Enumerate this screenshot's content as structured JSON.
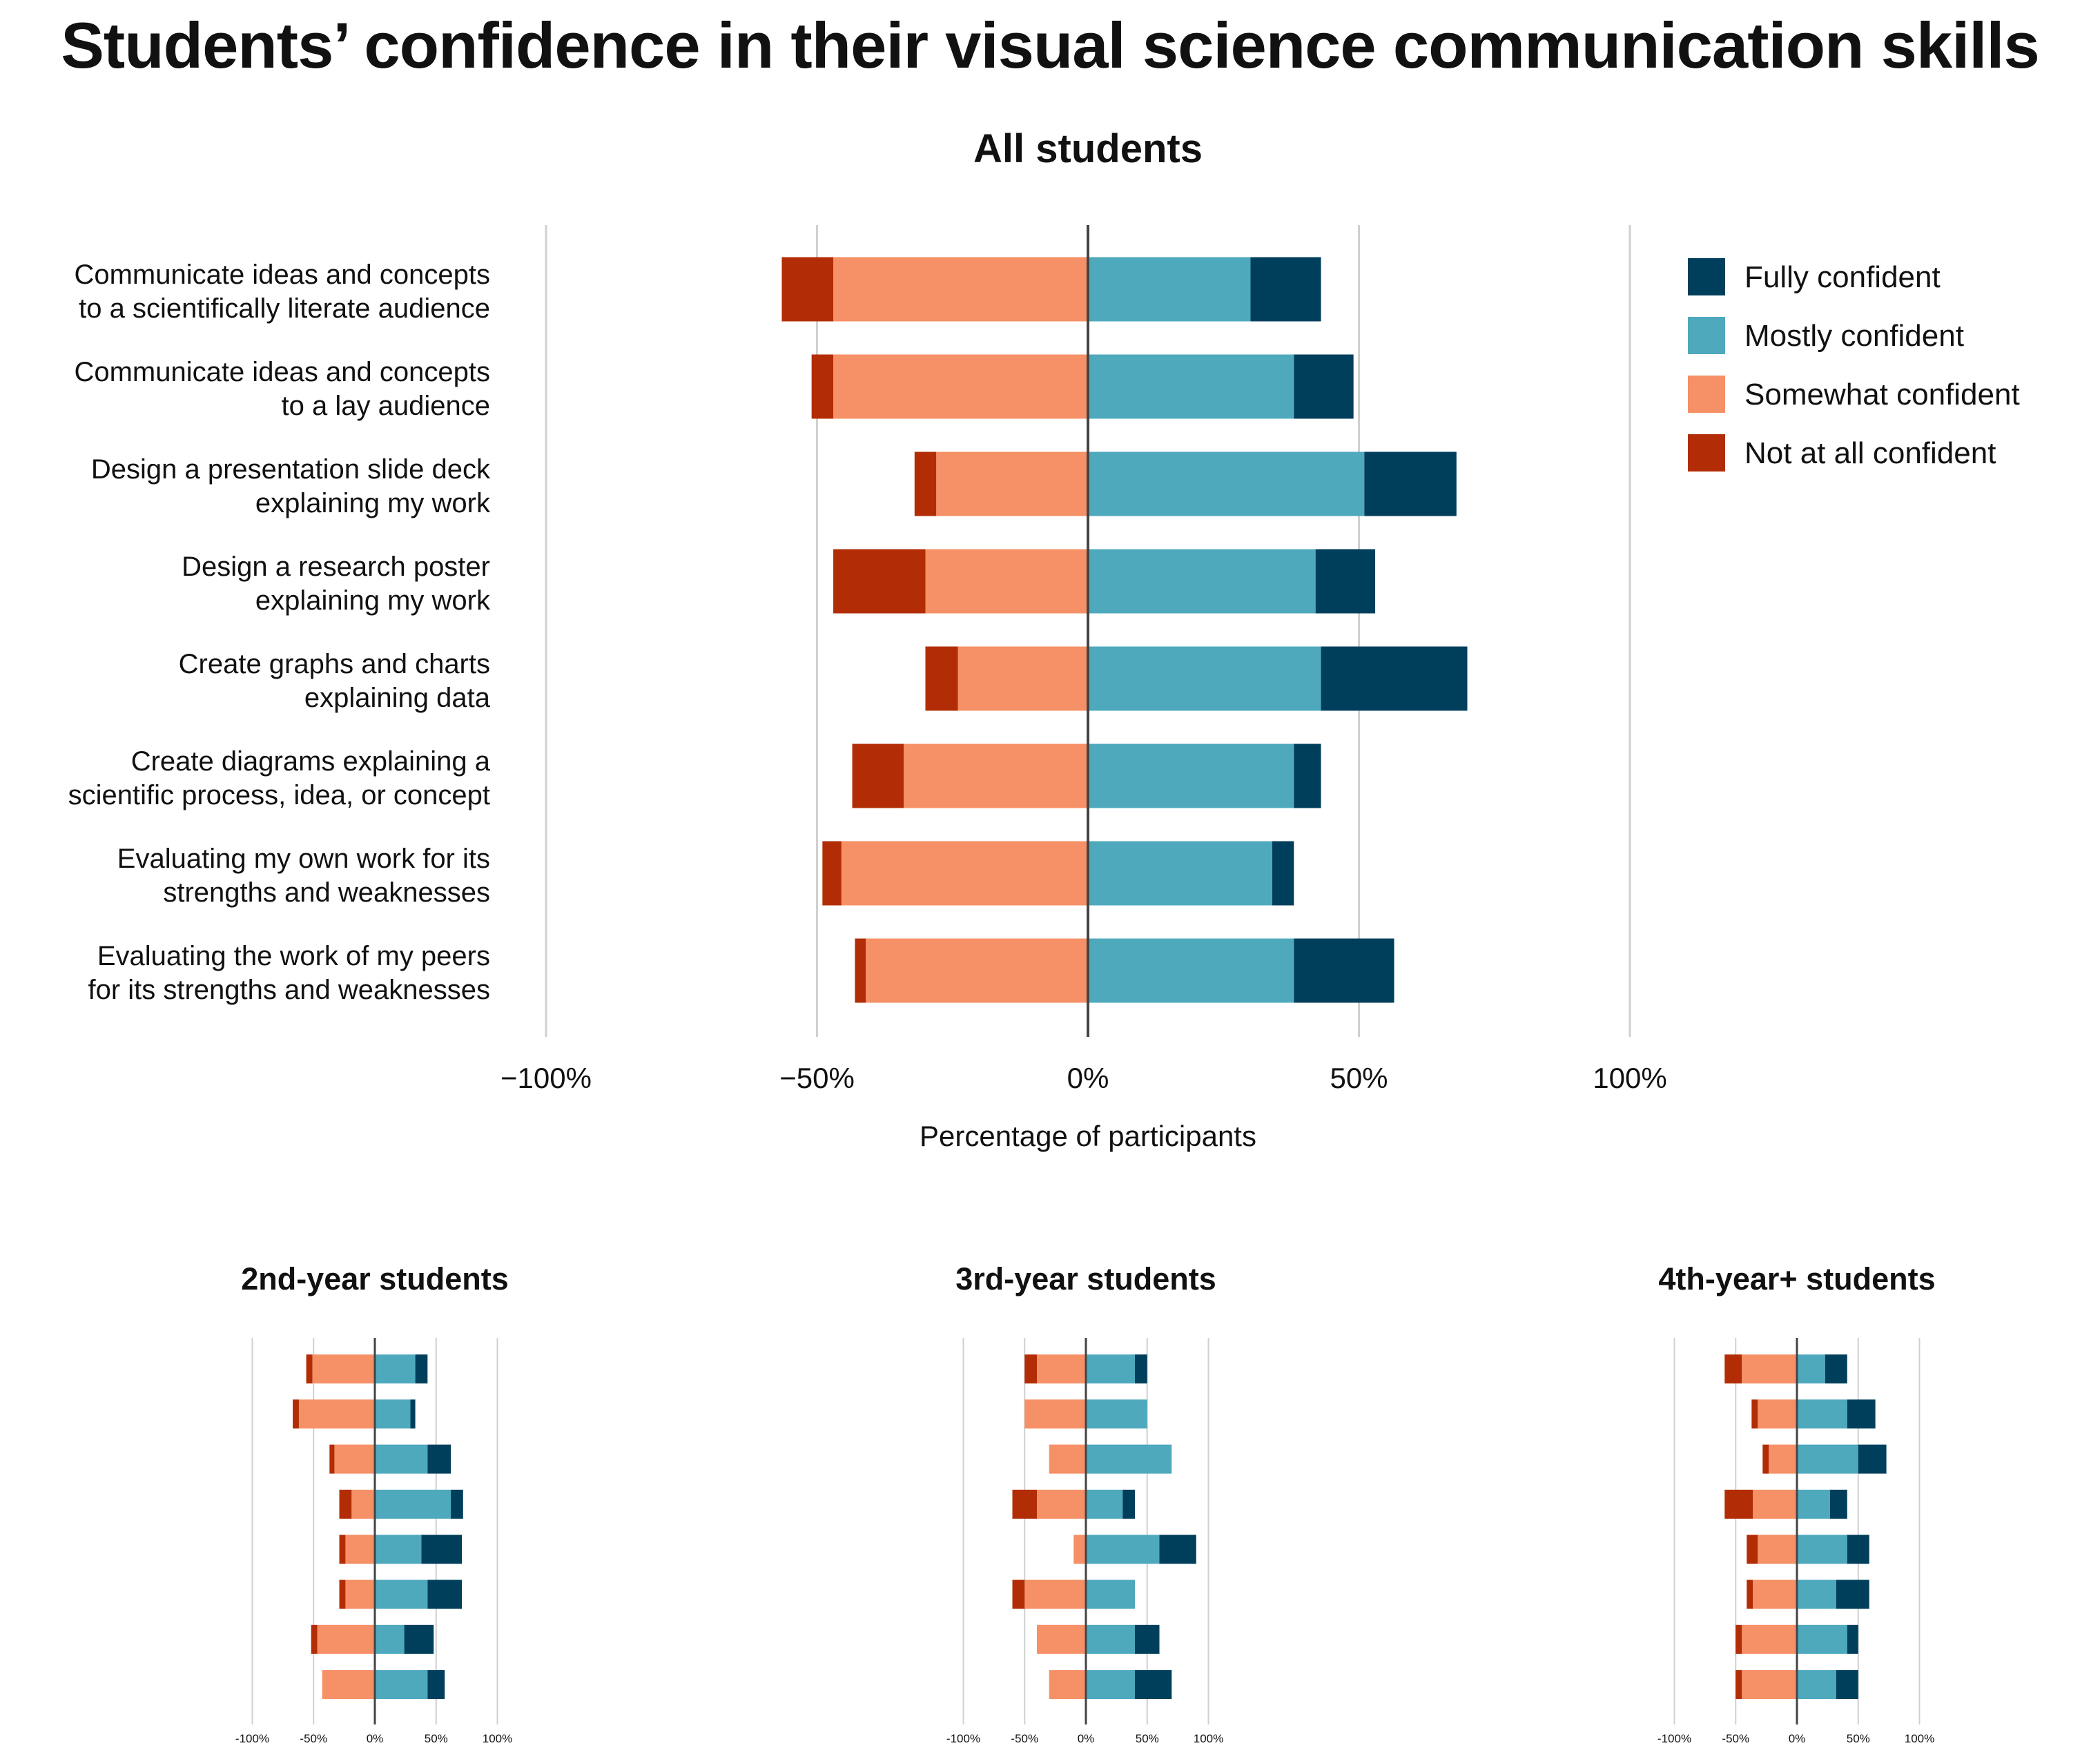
{
  "title": "Students’ confidence in their visual science communication skills",
  "legend": [
    {
      "label": "Fully confident",
      "color": "#003f5c"
    },
    {
      "label": "Mostly confident",
      "color": "#4ea9bd"
    },
    {
      "label": "Somewhat confident",
      "color": "#f69066"
    },
    {
      "label": "Not at all confident",
      "color": "#b22d05"
    }
  ],
  "chart_data": [
    {
      "type": "bar",
      "orientation": "horizontal-diverging-stacked",
      "title": "All students",
      "xlabel": "Percentage of participants",
      "xlim": [
        -100,
        100
      ],
      "ticks": [
        "−100%",
        "−50%",
        "0%",
        "50%",
        "100%"
      ],
      "categories": [
        "Communicate ideas and concepts\nto a scientifically literate audience",
        "Communicate ideas and concepts\nto a lay audience",
        "Design a presentation slide deck\nexplaining my work",
        "Design a research poster\nexplaining my work",
        "Create graphs and charts\nexplaining data",
        "Create diagrams explaining a\nscientific process, idea, or concept",
        "Evaluating my own work for its\nstrengths and weaknesses",
        "Evaluating the work of my peers\nfor its strengths and weaknesses"
      ],
      "series": [
        {
          "name": "Not at all confident",
          "values": [
            -9.5,
            -4,
            -4,
            -17,
            -6,
            -9.5,
            -3.5,
            -2
          ]
        },
        {
          "name": "Somewhat confident",
          "values": [
            -47,
            -47,
            -28,
            -30,
            -24,
            -34,
            -45.5,
            -41
          ]
        },
        {
          "name": "Mostly confident",
          "values": [
            30,
            38,
            51,
            42,
            43,
            38,
            34,
            38
          ]
        },
        {
          "name": "Fully confident",
          "values": [
            13,
            11,
            17,
            11,
            27,
            5,
            4,
            18.5
          ]
        }
      ],
      "legend_position": "right"
    },
    {
      "type": "bar",
      "orientation": "horizontal-diverging-stacked",
      "title": "2nd-year students",
      "xlim": [
        -100,
        100
      ],
      "ticks": [
        "-100%",
        "-50%",
        "0%",
        "50%",
        "100%"
      ],
      "series": [
        {
          "name": "Not at all confident",
          "values": [
            -5,
            -5,
            -4,
            -10,
            -5,
            -5,
            -5,
            0
          ]
        },
        {
          "name": "Somewhat confident",
          "values": [
            -51,
            -62,
            -33,
            -19,
            -24,
            -24,
            -47,
            -43
          ]
        },
        {
          "name": "Mostly confident",
          "values": [
            33,
            29,
            43,
            62,
            38,
            43,
            24,
            43
          ]
        },
        {
          "name": "Fully confident",
          "values": [
            10,
            4,
            19,
            10,
            33,
            28,
            24,
            14
          ]
        }
      ]
    },
    {
      "type": "bar",
      "orientation": "horizontal-diverging-stacked",
      "title": "3rd-year students",
      "xlim": [
        -100,
        100
      ],
      "ticks": [
        "-100%",
        "-50%",
        "0%",
        "50%",
        "100%"
      ],
      "series": [
        {
          "name": "Not at all confident",
          "values": [
            -10,
            0,
            0,
            -20,
            0,
            -10,
            0,
            0
          ]
        },
        {
          "name": "Somewhat confident",
          "values": [
            -40,
            -50,
            -30,
            -40,
            -10,
            -50,
            -40,
            -30
          ]
        },
        {
          "name": "Mostly confident",
          "values": [
            40,
            50,
            70,
            30,
            60,
            40,
            40,
            40
          ]
        },
        {
          "name": "Fully confident",
          "values": [
            10,
            0,
            0,
            10,
            30,
            0,
            20,
            30
          ]
        }
      ]
    },
    {
      "type": "bar",
      "orientation": "horizontal-diverging-stacked",
      "title": "4th-year+ students",
      "xlim": [
        -100,
        100
      ],
      "ticks": [
        "-100%",
        "-50%",
        "0%",
        "50%",
        "100%"
      ],
      "series": [
        {
          "name": "Not at all confident",
          "values": [
            -14,
            -5,
            -5,
            -23,
            -9,
            -5,
            -5,
            -5
          ]
        },
        {
          "name": "Somewhat confident",
          "values": [
            -45,
            -32,
            -23,
            -36,
            -32,
            -36,
            -45,
            -45
          ]
        },
        {
          "name": "Mostly confident",
          "values": [
            23,
            41,
            50,
            27,
            41,
            32,
            41,
            32
          ]
        },
        {
          "name": "Fully confident",
          "values": [
            18,
            23,
            23,
            14,
            18,
            27,
            9,
            18
          ]
        }
      ]
    }
  ]
}
